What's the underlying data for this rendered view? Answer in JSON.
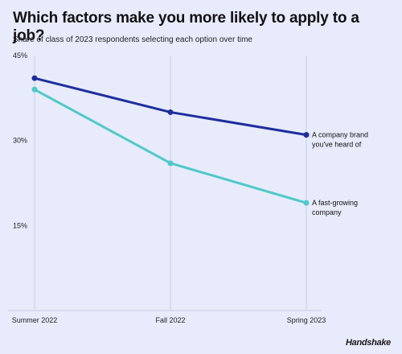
{
  "title": "Which factors make you more likely to apply to a job?",
  "subtitle": "Share of class of 2023 respondents selecting each option over time",
  "brand": "Handshake",
  "colors": {
    "background": "#e8ebfb",
    "series_dark": "#1e2f9b",
    "series_light": "#4fc9c9",
    "grid": "#c9cdea"
  },
  "chart_data": {
    "type": "line",
    "x": [
      "Summer 2022",
      "Fall 2022",
      "Spring 2023"
    ],
    "y_ticks": [
      "45%",
      "30%",
      "15%"
    ],
    "ylim": [
      0,
      45
    ],
    "grid": "vertical lines at each period",
    "legend": "inline labels at line ends",
    "series": [
      {
        "name": [
          "A company brand",
          "you've heard of"
        ],
        "values": [
          41,
          35,
          31
        ]
      },
      {
        "name": [
          "A fast-growing",
          "company"
        ],
        "values": [
          39,
          26,
          19
        ]
      }
    ]
  }
}
